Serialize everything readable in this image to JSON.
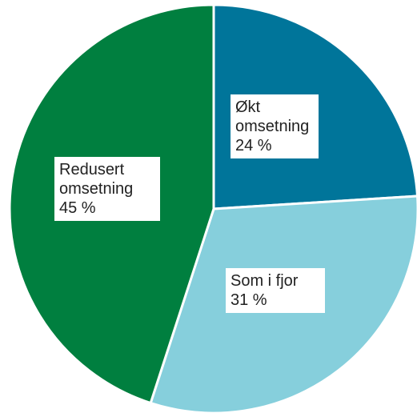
{
  "chart_data": {
    "type": "pie",
    "categories": [
      "Økt omsetning",
      "Som i fjor",
      "Redusert omsetning"
    ],
    "values": [
      24,
      31,
      45
    ],
    "value_labels": [
      "24 %",
      "31 %",
      "45 %"
    ],
    "colors": [
      "#00759a",
      "#86cfdc",
      "#007f3f"
    ]
  }
}
